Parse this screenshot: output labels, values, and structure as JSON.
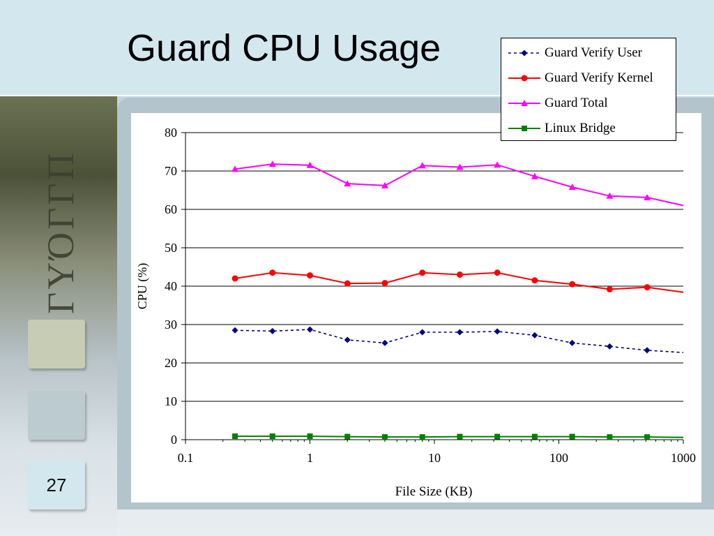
{
  "slide": {
    "title": "Guard CPU Usage",
    "page_number": "27",
    "vertical_word": "ΓΥΌΓΓΠ"
  },
  "chart_data": {
    "type": "line",
    "title": "",
    "xlabel": "File Size (KB)",
    "ylabel": "CPU (%)",
    "x_scale": "log",
    "xlim": [
      0.1,
      1000
    ],
    "ylim": [
      0,
      80
    ],
    "x_ticks": [
      "0.1",
      "1",
      "10",
      "100",
      "1000"
    ],
    "y_ticks": [
      "0",
      "10",
      "20",
      "30",
      "40",
      "50",
      "60",
      "70",
      "80"
    ],
    "grid": "horizontal",
    "legend_position": "top-right",
    "x": [
      0.25,
      0.5,
      1,
      2,
      4,
      8,
      16,
      32,
      64,
      128,
      256,
      512,
      1000
    ],
    "series": [
      {
        "name": "Guard Verify User",
        "color": "#000080",
        "marker": "diamond",
        "dashed": true,
        "values": [
          28.5,
          28.3,
          28.7,
          26.0,
          25.2,
          28.0,
          28.0,
          28.2,
          27.2,
          25.2,
          24.3,
          23.3,
          22.7
        ]
      },
      {
        "name": "Guard Verify Kernel",
        "color": "#ff0000",
        "marker": "circle",
        "dashed": false,
        "values": [
          42.0,
          43.5,
          42.8,
          40.7,
          40.8,
          43.5,
          43.0,
          43.5,
          41.5,
          40.5,
          39.2,
          39.7,
          38.4
        ]
      },
      {
        "name": "Guard Total",
        "color": "#ff00ff",
        "marker": "triangle",
        "dashed": false,
        "values": [
          70.5,
          71.8,
          71.5,
          66.7,
          66.2,
          71.4,
          71.0,
          71.6,
          68.6,
          65.8,
          63.5,
          63.1,
          61.0
        ]
      },
      {
        "name": "Linux Bridge",
        "color": "#008000",
        "marker": "square",
        "dashed": false,
        "values": [
          0.9,
          0.9,
          0.9,
          0.8,
          0.7,
          0.7,
          0.8,
          0.8,
          0.8,
          0.8,
          0.7,
          0.7,
          0.6
        ]
      }
    ]
  }
}
